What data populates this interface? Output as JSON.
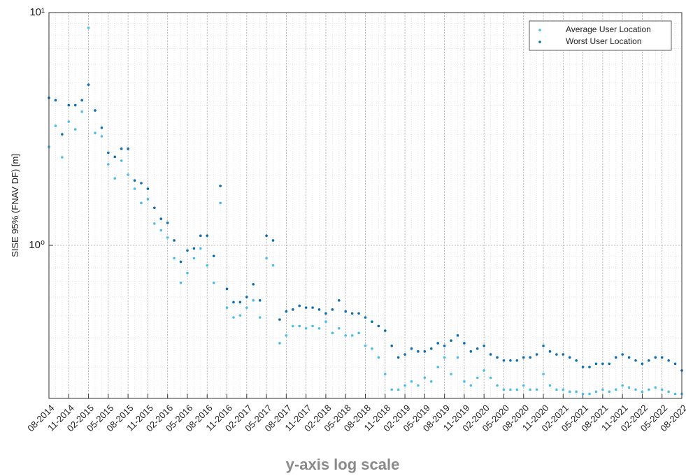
{
  "chart_data": {
    "type": "scatter",
    "ylabel": "SISE 95% (FNAV DF) [m]",
    "caption": "y-axis log scale",
    "log_y": true,
    "grid": true,
    "legend": "upper right",
    "ylim": [
      0.22,
      10
    ],
    "yticks": [
      {
        "value": 1,
        "label": "10⁰"
      },
      {
        "value": 10,
        "label": "10¹"
      }
    ],
    "yminorticks": [
      0.3,
      0.4,
      0.5,
      0.6,
      0.7,
      0.8,
      0.9,
      2,
      3,
      4,
      5,
      6,
      7,
      8,
      9
    ],
    "x": [
      "08-2014",
      "09-2014",
      "10-2014",
      "11-2014",
      "12-2014",
      "01-2015",
      "02-2015",
      "03-2015",
      "04-2015",
      "05-2015",
      "06-2015",
      "07-2015",
      "08-2015",
      "09-2015",
      "10-2015",
      "11-2015",
      "12-2015",
      "01-2016",
      "02-2016",
      "03-2016",
      "04-2016",
      "05-2016",
      "06-2016",
      "07-2016",
      "08-2016",
      "09-2016",
      "10-2016",
      "11-2016",
      "12-2016",
      "01-2017",
      "02-2017",
      "03-2017",
      "04-2017",
      "05-2017",
      "06-2017",
      "07-2017",
      "08-2017",
      "09-2017",
      "10-2017",
      "11-2017",
      "12-2017",
      "01-2018",
      "02-2018",
      "03-2018",
      "04-2018",
      "05-2018",
      "06-2018",
      "07-2018",
      "08-2018",
      "09-2018",
      "10-2018",
      "11-2018",
      "12-2018",
      "01-2019",
      "02-2019",
      "03-2019",
      "04-2019",
      "05-2019",
      "06-2019",
      "07-2019",
      "08-2019",
      "09-2019",
      "10-2019",
      "11-2019",
      "12-2019",
      "01-2020",
      "02-2020",
      "03-2020",
      "04-2020",
      "05-2020",
      "06-2020",
      "07-2020",
      "08-2020",
      "09-2020",
      "10-2020",
      "11-2020",
      "12-2020",
      "01-2021",
      "02-2021",
      "03-2021",
      "04-2021",
      "05-2021",
      "06-2021",
      "07-2021",
      "08-2021",
      "09-2021",
      "10-2021",
      "11-2021",
      "12-2021",
      "01-2022",
      "02-2022",
      "03-2022",
      "04-2022",
      "05-2022",
      "06-2022",
      "07-2022",
      "08-2022"
    ],
    "xticks": [
      "08-2014",
      "11-2014",
      "02-2015",
      "05-2015",
      "08-2015",
      "11-2015",
      "02-2016",
      "05-2016",
      "08-2016",
      "11-2016",
      "02-2017",
      "05-2017",
      "08-2017",
      "11-2017",
      "02-2018",
      "05-2018",
      "08-2018",
      "11-2018",
      "02-2019",
      "05-2019",
      "08-2019",
      "11-2019",
      "02-2020",
      "05-2020",
      "08-2020",
      "11-2020",
      "02-2021",
      "05-2021",
      "08-2021",
      "11-2021",
      "02-2022",
      "05-2022",
      "08-2022"
    ],
    "series": [
      {
        "name": "Average User Location",
        "color": "#4dbde8",
        "values": [
          2.65,
          3.26,
          2.39,
          3.4,
          3.15,
          3.75,
          8.6,
          3.04,
          2.94,
          2.23,
          1.94,
          2.31,
          2.01,
          1.75,
          1.52,
          1.58,
          1.24,
          1.16,
          1.08,
          0.88,
          0.69,
          0.76,
          0.88,
          0.97,
          0.82,
          0.69,
          1.52,
          0.54,
          0.49,
          0.5,
          0.54,
          0.58,
          0.49,
          0.88,
          0.82,
          0.38,
          0.41,
          0.45,
          0.45,
          0.44,
          0.45,
          0.44,
          0.47,
          0.42,
          0.44,
          0.41,
          0.41,
          0.42,
          0.37,
          0.36,
          0.33,
          0.28,
          0.24,
          0.24,
          0.25,
          0.26,
          0.25,
          0.27,
          0.26,
          0.3,
          0.33,
          0.28,
          0.33,
          0.26,
          0.25,
          0.27,
          0.29,
          0.27,
          0.25,
          0.24,
          0.24,
          0.24,
          0.25,
          0.24,
          0.24,
          0.28,
          0.25,
          0.24,
          0.24,
          0.235,
          0.235,
          0.23,
          0.23,
          0.235,
          0.24,
          0.235,
          0.24,
          0.25,
          0.245,
          0.24,
          0.235,
          0.24,
          0.245,
          0.24,
          0.235,
          0.23,
          0.23
        ]
      },
      {
        "name": "Worst User Location",
        "color": "#0b6db0",
        "values": [
          4.3,
          4.2,
          3.0,
          4.0,
          4.0,
          4.2,
          4.9,
          3.8,
          3.2,
          2.5,
          2.4,
          2.6,
          2.6,
          1.9,
          1.85,
          1.75,
          1.45,
          1.3,
          1.25,
          1.05,
          0.85,
          0.95,
          0.97,
          1.1,
          1.1,
          0.9,
          1.8,
          0.65,
          0.57,
          0.57,
          0.6,
          0.68,
          0.58,
          1.1,
          1.05,
          0.48,
          0.52,
          0.53,
          0.55,
          0.54,
          0.54,
          0.53,
          0.51,
          0.53,
          0.58,
          0.52,
          0.51,
          0.51,
          0.49,
          0.47,
          0.45,
          0.43,
          0.37,
          0.33,
          0.34,
          0.36,
          0.35,
          0.35,
          0.36,
          0.38,
          0.37,
          0.39,
          0.41,
          0.38,
          0.35,
          0.36,
          0.37,
          0.34,
          0.33,
          0.32,
          0.32,
          0.32,
          0.33,
          0.33,
          0.34,
          0.37,
          0.35,
          0.34,
          0.34,
          0.33,
          0.32,
          0.3,
          0.3,
          0.31,
          0.31,
          0.31,
          0.33,
          0.34,
          0.33,
          0.32,
          0.31,
          0.32,
          0.33,
          0.33,
          0.32,
          0.31,
          0.29
        ]
      }
    ]
  }
}
